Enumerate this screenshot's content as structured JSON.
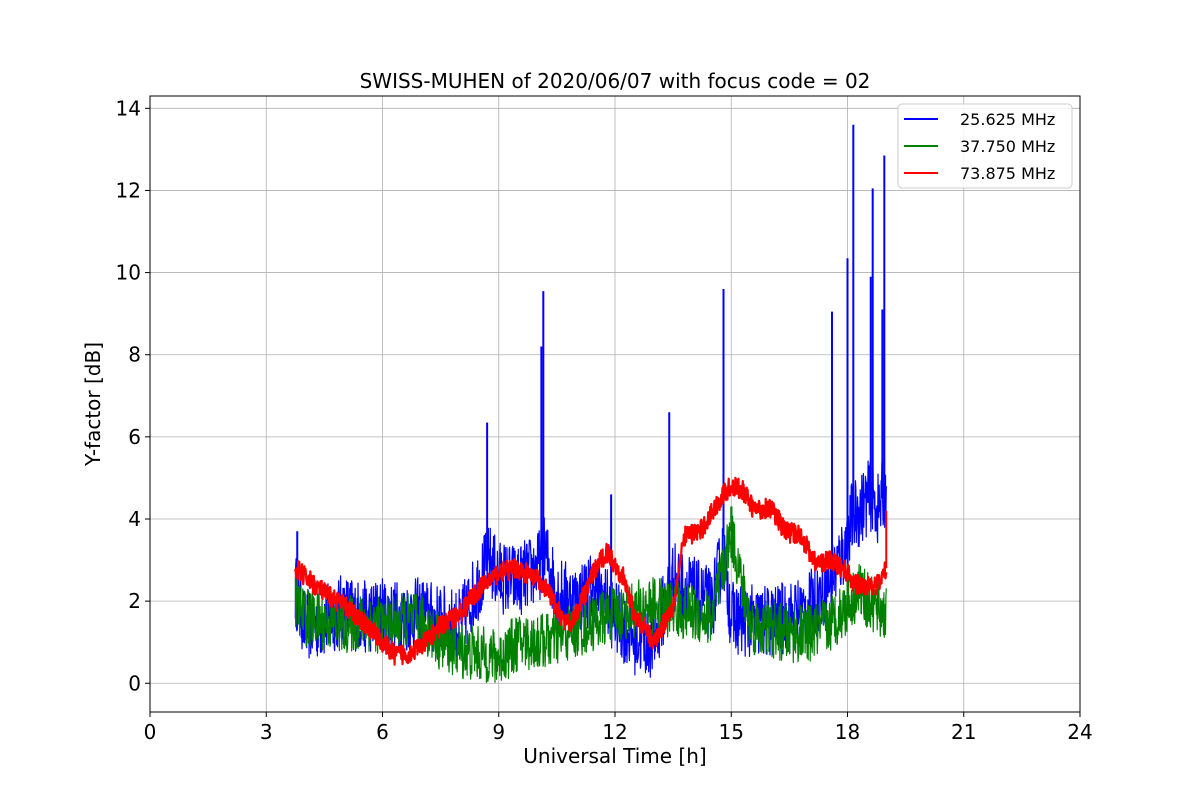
{
  "chart_data": {
    "type": "line",
    "title": "SWISS-MUHEN of 2020/06/07 with focus code = 02",
    "xlabel": "Universal Time [h]",
    "ylabel": "Y-factor [dB]",
    "xlim": [
      0,
      24
    ],
    "ylim": [
      -0.7,
      14.3
    ],
    "xticks": [
      "0",
      "3",
      "6",
      "9",
      "12",
      "15",
      "18",
      "21",
      "24"
    ],
    "yticks": [
      "0",
      "2",
      "4",
      "6",
      "8",
      "10",
      "12",
      "14"
    ],
    "grid": true,
    "legend_position": "top-right",
    "series": [
      {
        "name": "25.625 MHz",
        "color": "#0000ff",
        "x": [
          3.75,
          4.0,
          4.5,
          5.0,
          5.5,
          6.0,
          6.5,
          7.0,
          7.5,
          8.0,
          8.5,
          8.75,
          9.0,
          9.5,
          10.0,
          10.2,
          10.5,
          11.0,
          11.5,
          12.0,
          12.5,
          13.0,
          13.5,
          14.0,
          14.5,
          14.8,
          15.0,
          15.5,
          16.0,
          16.5,
          17.0,
          17.5,
          17.8,
          18.0,
          18.1,
          18.3,
          18.6,
          18.8,
          19.0
        ],
        "y": [
          2.3,
          1.4,
          1.5,
          1.8,
          1.6,
          1.7,
          1.6,
          1.7,
          1.5,
          1.4,
          2.5,
          3.0,
          2.6,
          2.5,
          2.8,
          3.2,
          2.2,
          2.0,
          2.4,
          1.6,
          1.1,
          1.0,
          2.6,
          2.2,
          1.9,
          3.2,
          1.6,
          1.5,
          1.5,
          1.6,
          1.8,
          2.4,
          3.0,
          3.4,
          4.0,
          4.2,
          4.6,
          4.2,
          4.8
        ],
        "spikes": [
          {
            "x": 3.8,
            "y": 3.7
          },
          {
            "x": 8.7,
            "y": 6.35
          },
          {
            "x": 10.1,
            "y": 8.2
          },
          {
            "x": 10.15,
            "y": 9.55
          },
          {
            "x": 11.9,
            "y": 4.6
          },
          {
            "x": 13.4,
            "y": 6.6
          },
          {
            "x": 14.8,
            "y": 9.6
          },
          {
            "x": 17.6,
            "y": 9.05
          },
          {
            "x": 18.0,
            "y": 10.35
          },
          {
            "x": 18.15,
            "y": 13.6
          },
          {
            "x": 18.6,
            "y": 9.9
          },
          {
            "x": 18.65,
            "y": 12.05
          },
          {
            "x": 18.9,
            "y": 9.1
          },
          {
            "x": 18.95,
            "y": 12.85
          }
        ]
      },
      {
        "name": "37.750 MHz",
        "color": "#008000",
        "x": [
          3.75,
          4.0,
          4.5,
          5.0,
          5.5,
          6.0,
          6.5,
          7.0,
          7.5,
          8.0,
          8.5,
          9.0,
          9.5,
          10.0,
          10.5,
          11.0,
          11.5,
          12.0,
          12.5,
          13.0,
          13.5,
          14.0,
          14.5,
          15.0,
          15.5,
          16.0,
          16.5,
          17.0,
          17.5,
          18.0,
          18.3,
          18.6,
          19.0
        ],
        "y": [
          2.0,
          1.6,
          1.5,
          1.4,
          1.5,
          1.4,
          1.5,
          1.5,
          1.0,
          0.8,
          0.7,
          0.6,
          1.0,
          1.0,
          1.1,
          1.3,
          1.5,
          1.7,
          1.8,
          1.9,
          1.8,
          1.7,
          1.6,
          3.7,
          1.4,
          1.3,
          1.2,
          1.2,
          1.4,
          1.9,
          2.3,
          1.9,
          1.7
        ],
        "spikes": [
          {
            "x": 15.0,
            "y": 4.3
          },
          {
            "x": 18.0,
            "y": 2.9
          }
        ]
      },
      {
        "name": "73.875 MHz",
        "color": "#ff0000",
        "x": [
          3.75,
          4.0,
          4.5,
          5.0,
          5.5,
          6.0,
          6.3,
          6.6,
          7.0,
          7.5,
          8.0,
          8.5,
          9.0,
          9.5,
          10.0,
          10.3,
          10.5,
          10.8,
          11.0,
          11.5,
          11.8,
          12.2,
          12.5,
          13.0,
          13.5,
          13.8,
          14.2,
          14.6,
          14.8,
          15.0,
          15.3,
          15.6,
          16.0,
          16.4,
          16.8,
          17.2,
          17.5,
          17.9,
          18.2,
          18.5,
          18.8,
          19.0
        ],
        "y": [
          2.8,
          2.6,
          2.2,
          1.9,
          1.5,
          1.0,
          0.7,
          0.7,
          0.9,
          1.4,
          1.7,
          2.3,
          2.7,
          2.8,
          2.5,
          2.2,
          1.8,
          1.4,
          1.7,
          2.8,
          3.2,
          2.6,
          1.7,
          1.0,
          1.9,
          3.6,
          3.7,
          4.3,
          4.6,
          4.8,
          4.7,
          4.2,
          4.3,
          3.7,
          3.6,
          2.9,
          3.0,
          2.8,
          2.4,
          2.4,
          2.4,
          2.8
        ],
        "spikes": [
          {
            "x": 19.0,
            "y": 4.2
          }
        ]
      }
    ]
  }
}
